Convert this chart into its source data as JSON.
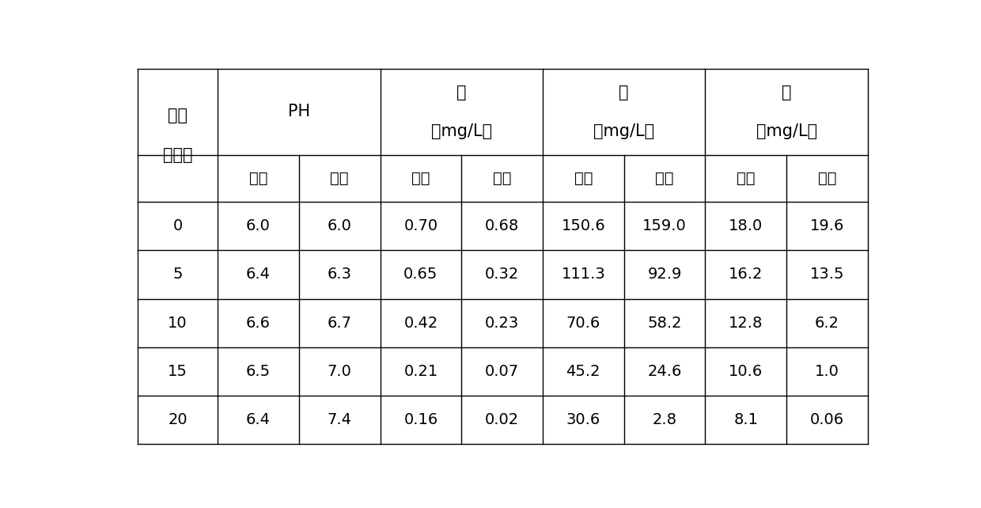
{
  "bg_color": "#ffffff",
  "border_color": "#000000",
  "text_color": "#000000",
  "font_size_header": 15,
  "font_size_subheader": 14,
  "font_size_data": 14,
  "sub_headers": [
    "对照",
    "修复",
    "对照",
    "修复",
    "对照",
    "修复",
    "对照",
    "修复"
  ],
  "rows": [
    [
      "0",
      "6.0",
      "6.0",
      "0.70",
      "0.68",
      "150.6",
      "159.0",
      "18.0",
      "19.6"
    ],
    [
      "5",
      "6.4",
      "6.3",
      "0.65",
      "0.32",
      "111.3",
      "92.9",
      "16.2",
      "13.5"
    ],
    [
      "10",
      "6.6",
      "6.7",
      "0.42",
      "0.23",
      "70.6",
      "58.2",
      "12.8",
      "6.2"
    ],
    [
      "15",
      "6.5",
      "7.0",
      "0.21",
      "0.07",
      "45.2",
      "24.6",
      "10.6",
      "1.0"
    ],
    [
      "20",
      "6.4",
      "7.4",
      "0.16",
      "0.02",
      "30.6",
      "2.8",
      "8.1",
      "0.06"
    ]
  ]
}
